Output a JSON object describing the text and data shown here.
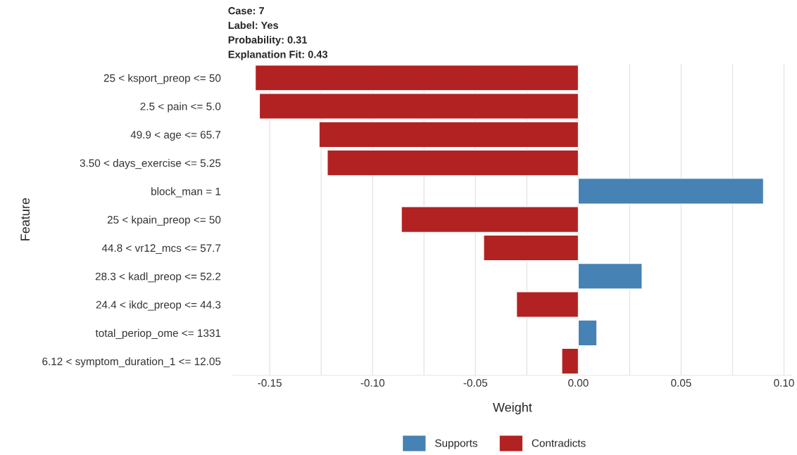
{
  "chart_data": {
    "type": "bar",
    "orientation": "horizontal",
    "annotations": [
      "Case: 7",
      "Label: Yes",
      "Probability: 0.31",
      "Explanation Fit: 0.43"
    ],
    "xlabel": "Weight",
    "ylabel": "Feature",
    "categories": [
      "25 < ksport_preop <= 50",
      "2.5 < pain <= 5.0",
      "49.9 < age <= 65.7",
      "3.50 < days_exercise <= 5.25",
      "block_man = 1",
      "25 < kpain_preop <= 50",
      "44.8 < vr12_mcs <= 57.7",
      "28.3 < kadl_preop <= 52.2",
      "24.4 < ikdc_preop <= 44.3",
      "total_periop_ome <= 1331",
      "6.12 < symptom_duration_1 <= 12.05"
    ],
    "series": [
      {
        "name": "Supports",
        "color": "#4682b4",
        "values": [
          null,
          null,
          null,
          null,
          0.09,
          null,
          null,
          0.031,
          null,
          0.009,
          null
        ]
      },
      {
        "name": "Contradicts",
        "color": "#b22222",
        "values": [
          -0.157,
          -0.155,
          -0.126,
          -0.122,
          null,
          -0.086,
          -0.046,
          null,
          -0.03,
          null,
          -0.008
        ]
      }
    ],
    "xlim": [
      -0.168,
      0.104
    ],
    "xticks": [
      {
        "value": -0.15,
        "label": "-0.15"
      },
      {
        "value": -0.125,
        "label": null
      },
      {
        "value": -0.1,
        "label": "-0.10"
      },
      {
        "value": -0.075,
        "label": null
      },
      {
        "value": -0.05,
        "label": "-0.05"
      },
      {
        "value": -0.025,
        "label": null
      },
      {
        "value": 0,
        "label": "0.00"
      },
      {
        "value": 0.025,
        "label": null
      },
      {
        "value": 0.05,
        "label": "0.05"
      },
      {
        "value": 0.075,
        "label": null
      },
      {
        "value": 0.1,
        "label": "0.10"
      }
    ],
    "grid": "x",
    "legend": "bottom"
  }
}
